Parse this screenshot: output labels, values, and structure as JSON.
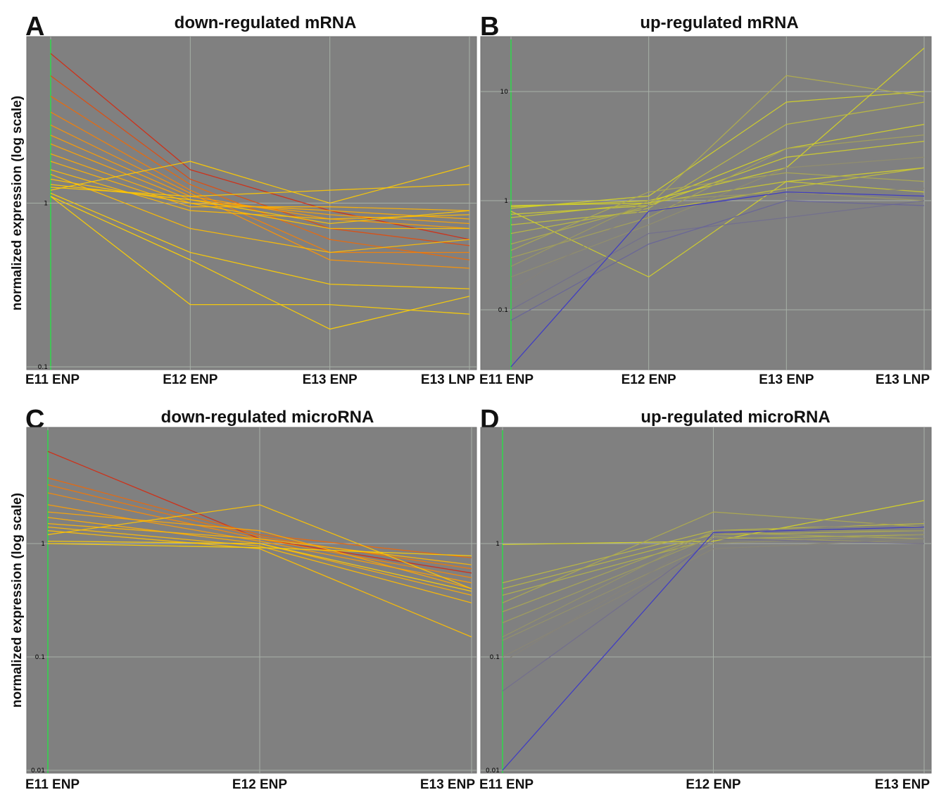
{
  "chart_data": [
    {
      "panel": "A",
      "type": "line",
      "title": "down-regulated mRNA",
      "ylabel": "normalized expression (log scale)",
      "yscale": "log",
      "ylim": [
        0.1,
        10
      ],
      "yticks": [
        "0.1",
        "1"
      ],
      "categories": [
        "E11 ENP",
        "E12 ENP",
        "E13 ENP",
        "E13 LNP"
      ],
      "grid": true,
      "colors": {
        "low": "#ffd000",
        "mid": "#ff9400",
        "high": "#d42a10"
      },
      "series": [
        {
          "values": [
            8.2,
            1.6,
            0.9,
            0.6
          ]
        },
        {
          "values": [
            6.0,
            1.4,
            0.7,
            0.55
          ]
        },
        {
          "values": [
            4.5,
            1.3,
            0.6,
            0.45
          ]
        },
        {
          "values": [
            3.6,
            1.2,
            0.5,
            0.5
          ]
        },
        {
          "values": [
            3.0,
            1.15,
            0.45,
            0.4
          ]
        },
        {
          "values": [
            2.6,
            1.1,
            0.8,
            0.7
          ]
        },
        {
          "values": [
            2.3,
            1.05,
            0.85,
            0.75
          ]
        },
        {
          "values": [
            2.0,
            1.0,
            0.9,
            0.8
          ]
        },
        {
          "values": [
            1.8,
            0.95,
            0.95,
            0.9
          ]
        },
        {
          "values": [
            1.6,
            0.9,
            0.8,
            0.85
          ]
        },
        {
          "values": [
            1.5,
            0.7,
            0.5,
            0.6
          ]
        },
        {
          "values": [
            1.4,
            1.0,
            0.7,
            0.7
          ]
        },
        {
          "values": [
            1.3,
            1.05,
            0.75,
            0.9
          ]
        },
        {
          "values": [
            1.25,
            1.1,
            1.2,
            1.3
          ]
        },
        {
          "values": [
            1.2,
            1.8,
            1.0,
            1.7
          ]
        },
        {
          "values": [
            1.15,
            0.5,
            0.32,
            0.3
          ]
        },
        {
          "values": [
            1.1,
            0.24,
            0.24,
            0.21
          ]
        },
        {
          "values": [
            1.1,
            0.45,
            0.17,
            0.27
          ]
        }
      ]
    },
    {
      "panel": "B",
      "type": "line",
      "title": "up-regulated mRNA",
      "yscale": "log",
      "ylim": [
        0.03,
        30
      ],
      "yticks": [
        "0.1",
        "1",
        "10"
      ],
      "categories": [
        "E11 ENP",
        "E12 ENP",
        "E13 ENP",
        "E13 LNP"
      ],
      "grid": true,
      "colors": {
        "low": "#3a36c8",
        "high": "#d6d424"
      },
      "series": [
        {
          "values": [
            0.9,
            0.95,
            3.0,
            5.0
          ]
        },
        {
          "values": [
            0.88,
            1.0,
            2.0,
            25.0
          ]
        },
        {
          "values": [
            0.85,
            1.1,
            8.0,
            10.0
          ]
        },
        {
          "values": [
            0.8,
            0.2,
            1.5,
            2.0
          ]
        },
        {
          "values": [
            0.75,
            0.9,
            2.5,
            3.5
          ]
        },
        {
          "values": [
            0.7,
            0.95,
            1.5,
            1.2
          ]
        },
        {
          "values": [
            0.6,
            0.8,
            1.3,
            2.0
          ]
        },
        {
          "values": [
            0.5,
            0.85,
            5.0,
            8.0
          ]
        },
        {
          "values": [
            0.4,
            0.9,
            14.0,
            9.0
          ]
        },
        {
          "values": [
            0.35,
            1.2,
            1.8,
            1.5
          ]
        },
        {
          "values": [
            0.3,
            0.7,
            3.0,
            4.0
          ]
        },
        {
          "values": [
            0.25,
            1.0,
            1.2,
            1.0
          ]
        },
        {
          "values": [
            0.2,
            0.6,
            2.0,
            2.5
          ]
        },
        {
          "values": [
            0.15,
            0.9,
            1.1,
            1.3
          ]
        },
        {
          "values": [
            0.1,
            0.5,
            0.7,
            1.0
          ]
        },
        {
          "values": [
            0.08,
            0.4,
            1.0,
            0.9
          ]
        },
        {
          "values": [
            0.03,
            0.8,
            1.2,
            1.1
          ]
        }
      ]
    },
    {
      "panel": "C",
      "type": "line",
      "title": "down-regulated microRNA",
      "ylabel": "normalized expression (log scale)",
      "yscale": "log",
      "ylim": [
        0.01,
        10
      ],
      "yticks": [
        "0.01",
        "0.1",
        "1"
      ],
      "categories": [
        "E11 ENP",
        "E12 ENP",
        "E13 ENP"
      ],
      "grid": true,
      "colors": {
        "low": "#ffd000",
        "mid": "#ff9400",
        "high": "#d42a10"
      },
      "series": [
        {
          "values": [
            6.5,
            1.1,
            0.55
          ]
        },
        {
          "values": [
            3.8,
            1.2,
            0.75
          ]
        },
        {
          "values": [
            3.3,
            1.15,
            0.6
          ]
        },
        {
          "values": [
            2.8,
            1.1,
            0.5
          ]
        },
        {
          "values": [
            2.2,
            1.05,
            0.45
          ]
        },
        {
          "values": [
            1.9,
            1.3,
            0.4
          ]
        },
        {
          "values": [
            1.7,
            1.0,
            0.35
          ]
        },
        {
          "values": [
            1.5,
            1.1,
            0.65
          ]
        },
        {
          "values": [
            1.4,
            0.95,
            0.3
          ]
        },
        {
          "values": [
            1.3,
            0.9,
            0.15
          ]
        },
        {
          "values": [
            1.2,
            2.2,
            0.4
          ]
        },
        {
          "values": [
            1.05,
            1.0,
            0.38
          ]
        },
        {
          "values": [
            1.0,
            0.92,
            0.78
          ]
        }
      ]
    },
    {
      "panel": "D",
      "type": "line",
      "title": "up-regulated microRNA",
      "yscale": "log",
      "ylim": [
        0.01,
        10
      ],
      "yticks": [
        "0.01",
        "0.1",
        "1"
      ],
      "categories": [
        "E11 ENP",
        "E12 ENP",
        "E13 ENP"
      ],
      "grid": true,
      "colors": {
        "low": "#3a36c8",
        "high": "#d6d424"
      },
      "series": [
        {
          "values": [
            0.98,
            1.05,
            2.4
          ]
        },
        {
          "values": [
            0.45,
            1.3,
            1.5
          ]
        },
        {
          "values": [
            0.4,
            1.2,
            1.3
          ]
        },
        {
          "values": [
            0.35,
            1.1,
            1.2
          ]
        },
        {
          "values": [
            0.3,
            1.9,
            1.4
          ]
        },
        {
          "values": [
            0.25,
            1.25,
            1.1
          ]
        },
        {
          "values": [
            0.2,
            1.15,
            1.0
          ]
        },
        {
          "values": [
            0.15,
            1.3,
            1.3
          ]
        },
        {
          "values": [
            0.14,
            1.0,
            1.2
          ]
        },
        {
          "values": [
            0.1,
            0.9,
            1.1
          ]
        },
        {
          "values": [
            0.09,
            1.2,
            1.6
          ]
        },
        {
          "values": [
            0.05,
            1.1,
            1.0
          ]
        },
        {
          "values": [
            0.01,
            1.25,
            1.4
          ]
        }
      ]
    }
  ],
  "panel_letters": [
    "A",
    "B",
    "C",
    "D"
  ]
}
